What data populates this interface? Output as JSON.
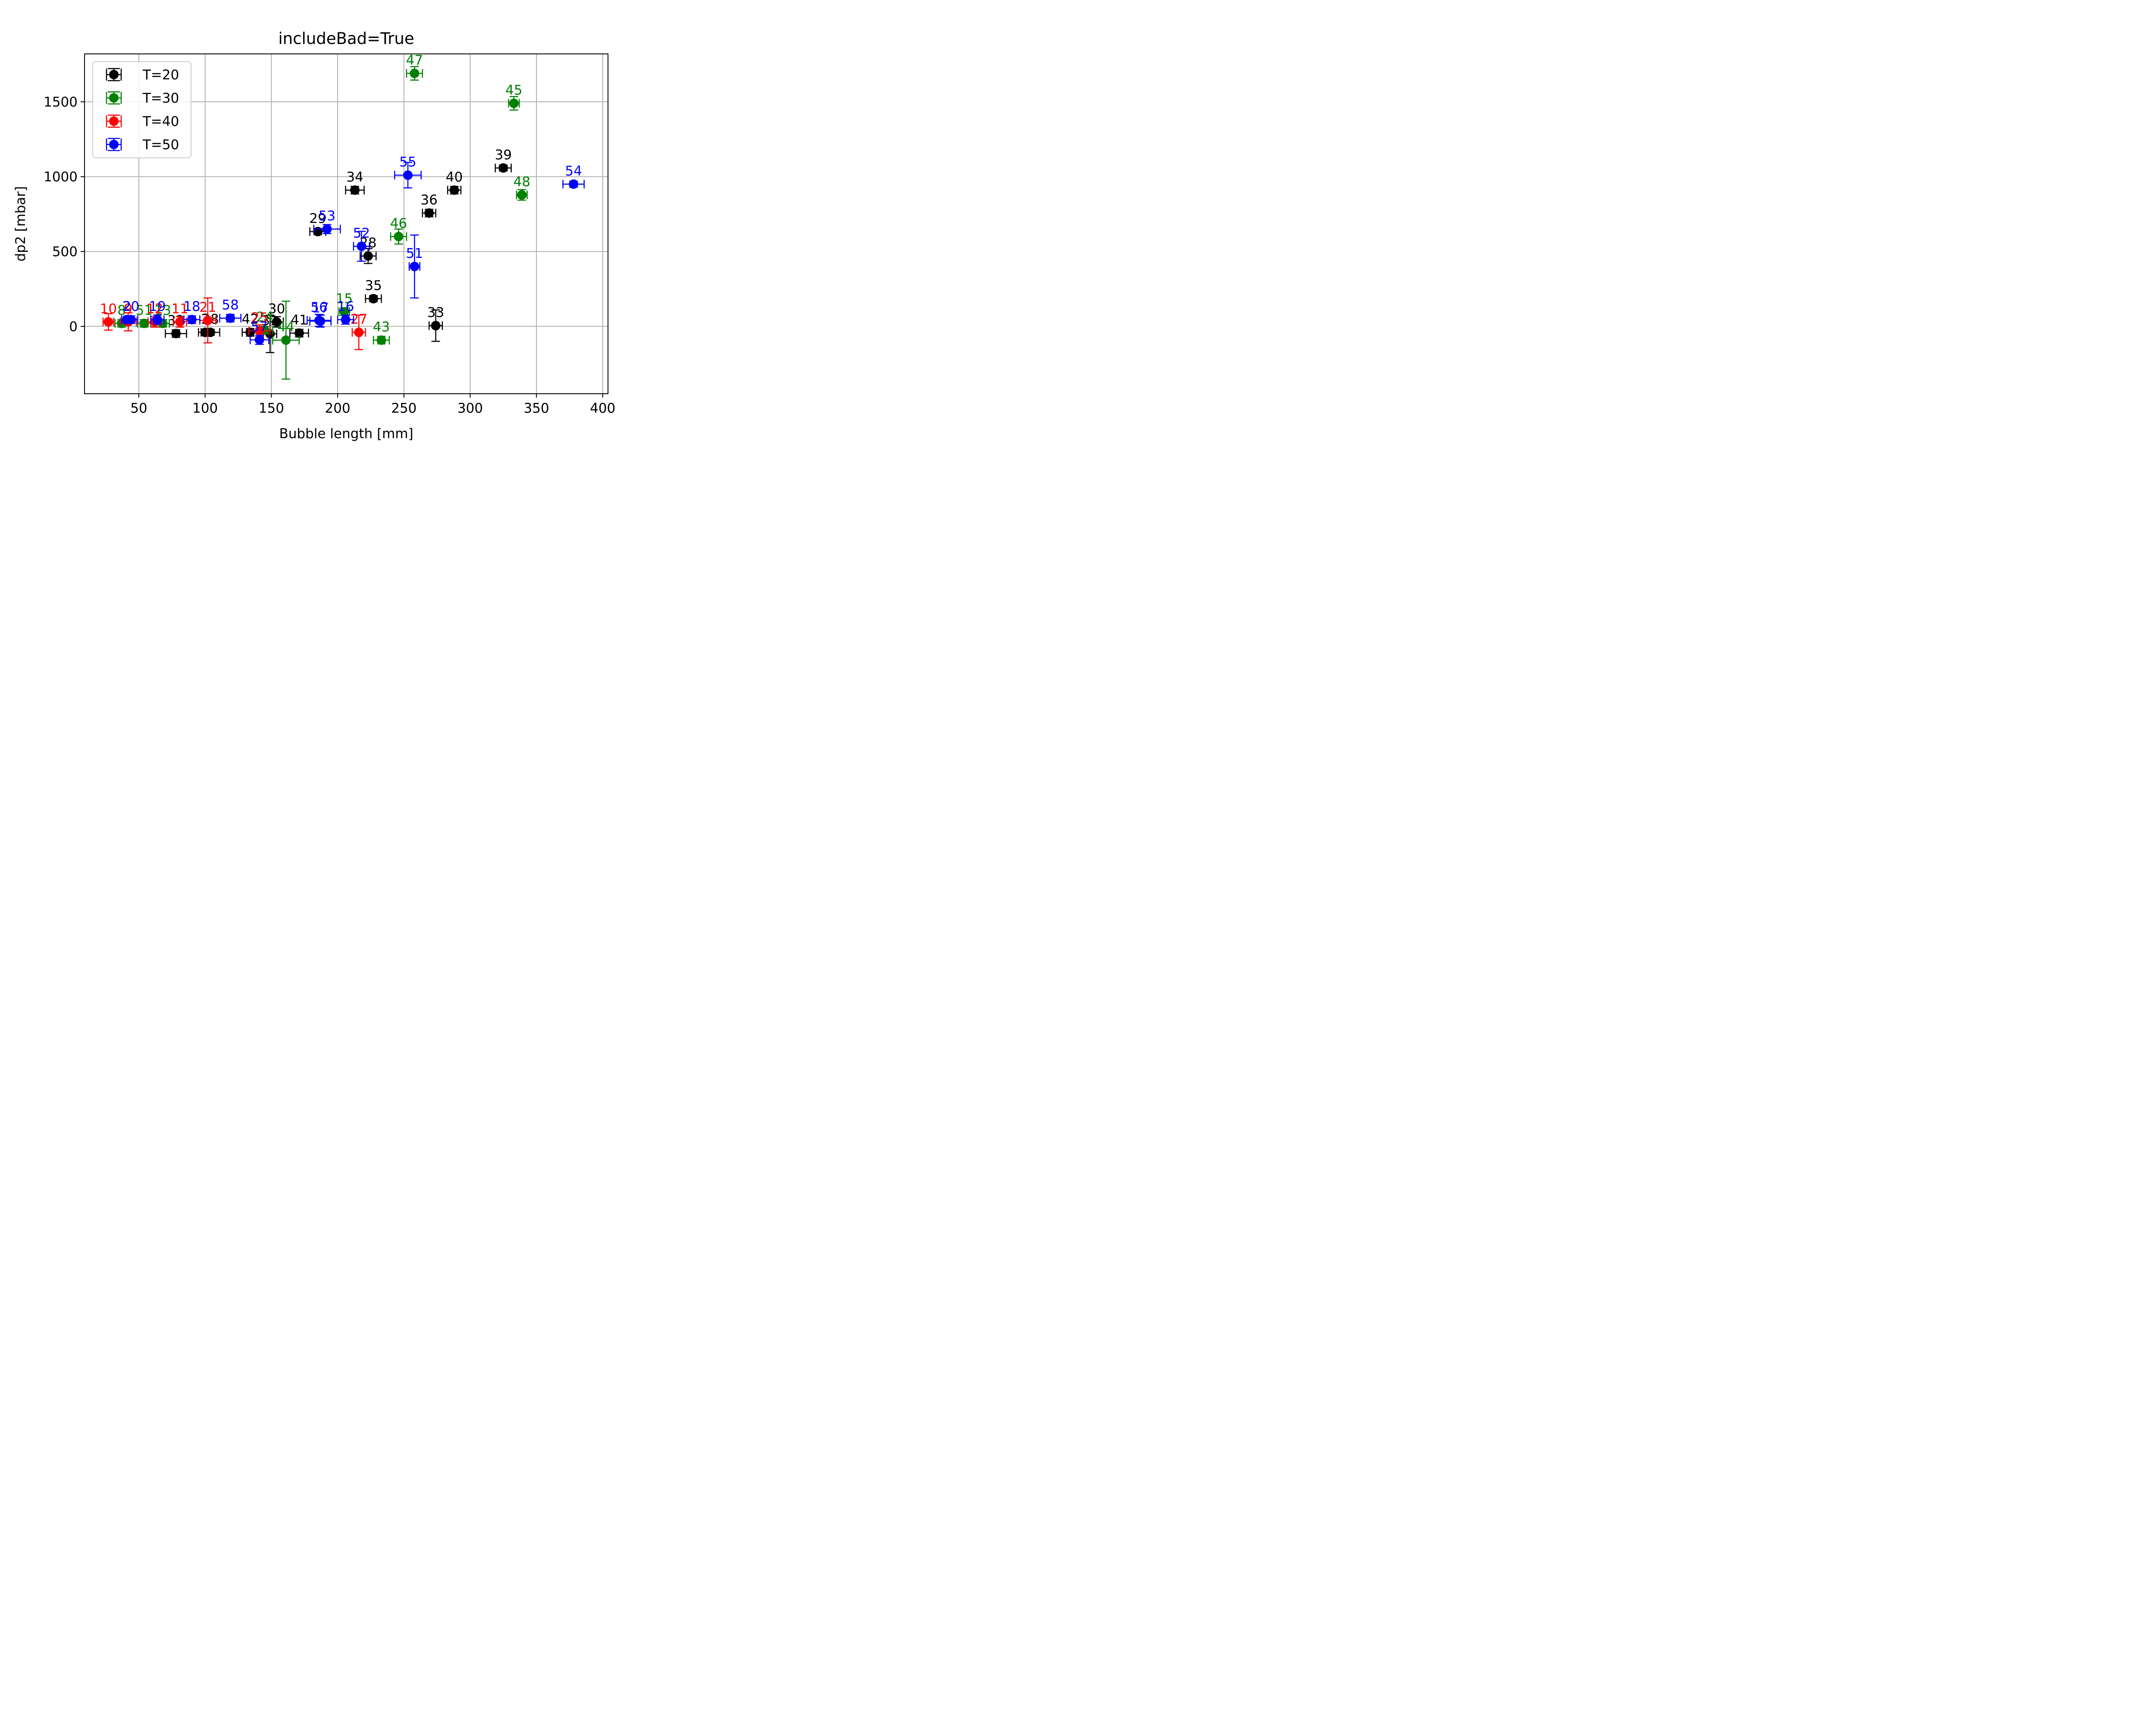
{
  "chart_data": {
    "type": "scatter",
    "title": "includeBad=True",
    "xlabel": "Bubble length [mm]",
    "ylabel": "dp2 [mbar]",
    "xlim": [
      9,
      404
    ],
    "ylim": [
      -450,
      1820
    ],
    "xticks": [
      50,
      100,
      150,
      200,
      250,
      300,
      350,
      400
    ],
    "yticks": [
      0,
      500,
      1000,
      1500
    ],
    "grid": true,
    "error_bars": true,
    "legend_position": "top-left",
    "series": [
      {
        "name": "T=20",
        "color": "#000000",
        "points": [
          {
            "label": "29",
            "x": 185,
            "y": 633,
            "xerr": 6,
            "yerr": 20
          },
          {
            "label": "34",
            "x": 213,
            "y": 910,
            "xerr": 7,
            "yerr": 25
          },
          {
            "label": "28",
            "x": 223,
            "y": 470,
            "xerr": 6,
            "yerr": 50
          },
          {
            "label": "35",
            "x": 227,
            "y": 185,
            "xerr": 6,
            "yerr": 20
          },
          {
            "label": "36",
            "x": 269,
            "y": 757,
            "xerr": 5,
            "yerr": 25
          },
          {
            "label": "40",
            "x": 288,
            "y": 910,
            "xerr": 5,
            "yerr": 25
          },
          {
            "label": "39",
            "x": 325,
            "y": 1058,
            "xerr": 6,
            "yerr": 20
          },
          {
            "label": "33",
            "x": 274,
            "y": 5,
            "xerr": 5,
            "yerr": 105
          },
          {
            "label": "32",
            "x": 78,
            "y": -48,
            "xerr": 8,
            "yerr": 25
          },
          {
            "label": "3",
            "x": 100,
            "y": -40,
            "xerr": 5,
            "yerr": 20
          },
          {
            "label": "38",
            "x": 104,
            "y": -40,
            "xerr": 7,
            "yerr": 20
          },
          {
            "label": "42",
            "x": 134,
            "y": -40,
            "xerr": 6,
            "yerr": 25
          },
          {
            "label": "31",
            "x": 149,
            "y": -50,
            "xerr": 5,
            "yerr": 125
          },
          {
            "label": "30",
            "x": 154,
            "y": 30,
            "xerr": 5,
            "yerr": 35
          },
          {
            "label": "41",
            "x": 171,
            "y": -45,
            "xerr": 7,
            "yerr": 25
          }
        ]
      },
      {
        "name": "T=30",
        "color": "#008000",
        "points": [
          {
            "label": "47",
            "x": 258,
            "y": 1690,
            "xerr": 6,
            "yerr": 45
          },
          {
            "label": "45",
            "x": 333,
            "y": 1490,
            "xerr": 4,
            "yerr": 45
          },
          {
            "label": "48",
            "x": 339,
            "y": 878,
            "xerr": 4,
            "yerr": 35
          },
          {
            "label": "46",
            "x": 246,
            "y": 600,
            "xerr": 6,
            "yerr": 50
          },
          {
            "label": "15",
            "x": 205,
            "y": 98,
            "xerr": 4,
            "yerr": 25
          },
          {
            "label": "43",
            "x": 233,
            "y": -92,
            "xerr": 6,
            "yerr": 25
          },
          {
            "label": "44",
            "x": 161,
            "y": -92,
            "xerr": 10,
            "yerr": 260
          },
          {
            "label": "24",
            "x": 145,
            "y": -25,
            "xerr": 6,
            "yerr": 25
          },
          {
            "label": "13",
            "x": 68,
            "y": 20,
            "xerr": 5,
            "yerr": 25
          },
          {
            "label": "51",
            "x": 54,
            "y": 20,
            "xerr": 5,
            "yerr": 25
          },
          {
            "label": "8",
            "x": 37,
            "y": 20,
            "xerr": 5,
            "yerr": 25
          }
        ]
      },
      {
        "name": "T=40",
        "color": "#ff0000",
        "points": [
          {
            "label": "10",
            "x": 27,
            "y": 30,
            "xerr": 4,
            "yerr": 55
          },
          {
            "label": "9",
            "x": 42,
            "y": 30,
            "xerr": 6,
            "yerr": 60
          },
          {
            "label": "12",
            "x": 62,
            "y": 30,
            "xerr": 5,
            "yerr": 35
          },
          {
            "label": "11",
            "x": 81,
            "y": 30,
            "xerr": 5,
            "yerr": 35
          },
          {
            "label": "21",
            "x": 102,
            "y": 40,
            "xerr": 6,
            "yerr": 150
          },
          {
            "label": "25",
            "x": 141,
            "y": -30,
            "xerr": 8,
            "yerr": 40
          },
          {
            "label": "27",
            "x": 216,
            "y": -40,
            "xerr": 5,
            "yerr": 115
          }
        ]
      },
      {
        "name": "T=50",
        "color": "#0000ff",
        "points": [
          {
            "label": "54",
            "x": 378,
            "y": 950,
            "xerr": 8,
            "yerr": 20
          },
          {
            "label": "55",
            "x": 253,
            "y": 1010,
            "xerr": 10,
            "yerr": 85
          },
          {
            "label": "53",
            "x": 192,
            "y": 650,
            "xerr": 10,
            "yerr": 30
          },
          {
            "label": "52",
            "x": 218,
            "y": 535,
            "xerr": 6,
            "yerr": 100
          },
          {
            "label": "51",
            "x": 258,
            "y": 400,
            "xerr": 4,
            "yerr": 210
          },
          {
            "label": "16",
            "x": 206,
            "y": 45,
            "xerr": 6,
            "yerr": 30
          },
          {
            "label": "56",
            "x": 186,
            "y": 40,
            "xerr": 9,
            "yerr": 40
          },
          {
            "label": "17",
            "x": 187,
            "y": 35,
            "xerr": 8,
            "yerr": 40
          },
          {
            "label": "58",
            "x": 119,
            "y": 55,
            "xerr": 8,
            "yerr": 25
          },
          {
            "label": "18",
            "x": 90,
            "y": 45,
            "xerr": 6,
            "yerr": 25
          },
          {
            "label": "19",
            "x": 64,
            "y": 45,
            "xerr": 5,
            "yerr": 30
          },
          {
            "label": "20",
            "x": 44,
            "y": 45,
            "xerr": 5,
            "yerr": 25
          },
          {
            "label": "2",
            "x": 41,
            "y": 45,
            "xerr": 4,
            "yerr": 20
          },
          {
            "label": "57",
            "x": 141,
            "y": -90,
            "xerr": 7,
            "yerr": 30
          }
        ]
      }
    ]
  }
}
